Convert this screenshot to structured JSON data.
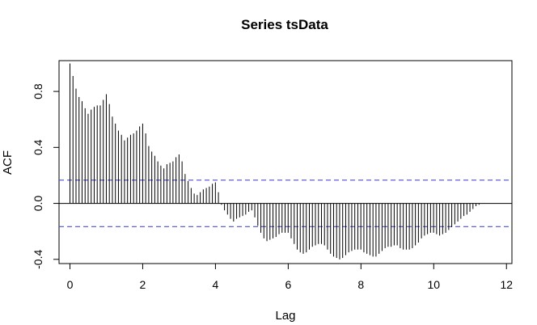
{
  "chart_data": {
    "type": "bar",
    "title": "Series  tsData",
    "xlabel": "Lag",
    "ylabel": "ACF",
    "xlim": [
      -0.3,
      12.15
    ],
    "ylim": [
      -0.43,
      1.02
    ],
    "xticks": [
      0,
      2,
      4,
      6,
      8,
      10,
      12
    ],
    "xtick_labels": [
      "0",
      "2",
      "4",
      "6",
      "8",
      "10",
      "12"
    ],
    "yticks": [
      -0.4,
      0.0,
      0.4,
      0.8
    ],
    "ytick_labels": [
      "-0.4",
      "0.0",
      "0.4",
      "0.8"
    ],
    "ci_bound": 0.166,
    "lag_step": 0.0833,
    "lags_start": 0,
    "values": [
      1.0,
      0.91,
      0.82,
      0.76,
      0.73,
      0.68,
      0.64,
      0.67,
      0.69,
      0.7,
      0.7,
      0.74,
      0.78,
      0.71,
      0.62,
      0.57,
      0.52,
      0.49,
      0.45,
      0.47,
      0.49,
      0.5,
      0.52,
      0.55,
      0.57,
      0.5,
      0.41,
      0.37,
      0.34,
      0.3,
      0.27,
      0.25,
      0.28,
      0.29,
      0.3,
      0.33,
      0.35,
      0.3,
      0.21,
      0.16,
      0.11,
      0.07,
      0.06,
      0.08,
      0.1,
      0.11,
      0.12,
      0.14,
      0.15,
      0.08,
      -0.01,
      -0.05,
      -0.08,
      -0.11,
      -0.13,
      -0.11,
      -0.1,
      -0.09,
      -0.08,
      -0.06,
      -0.05,
      -0.1,
      -0.16,
      -0.21,
      -0.25,
      -0.27,
      -0.26,
      -0.25,
      -0.24,
      -0.22,
      -0.21,
      -0.21,
      -0.21,
      -0.25,
      -0.29,
      -0.33,
      -0.35,
      -0.36,
      -0.35,
      -0.33,
      -0.31,
      -0.3,
      -0.29,
      -0.29,
      -0.3,
      -0.33,
      -0.36,
      -0.38,
      -0.39,
      -0.4,
      -0.39,
      -0.37,
      -0.35,
      -0.34,
      -0.33,
      -0.33,
      -0.33,
      -0.35,
      -0.36,
      -0.37,
      -0.38,
      -0.38,
      -0.36,
      -0.34,
      -0.32,
      -0.31,
      -0.31,
      -0.3,
      -0.3,
      -0.32,
      -0.33,
      -0.33,
      -0.33,
      -0.32,
      -0.3,
      -0.28,
      -0.25,
      -0.23,
      -0.22,
      -0.21,
      -0.21,
      -0.22,
      -0.23,
      -0.22,
      -0.21,
      -0.19,
      -0.17,
      -0.15,
      -0.13,
      -0.11,
      -0.09,
      -0.08,
      -0.06,
      -0.04,
      -0.02,
      -0.01,
      0.0
    ],
    "grid": false,
    "ci_color": "#4d4dd6",
    "bar_color": "#000000"
  }
}
